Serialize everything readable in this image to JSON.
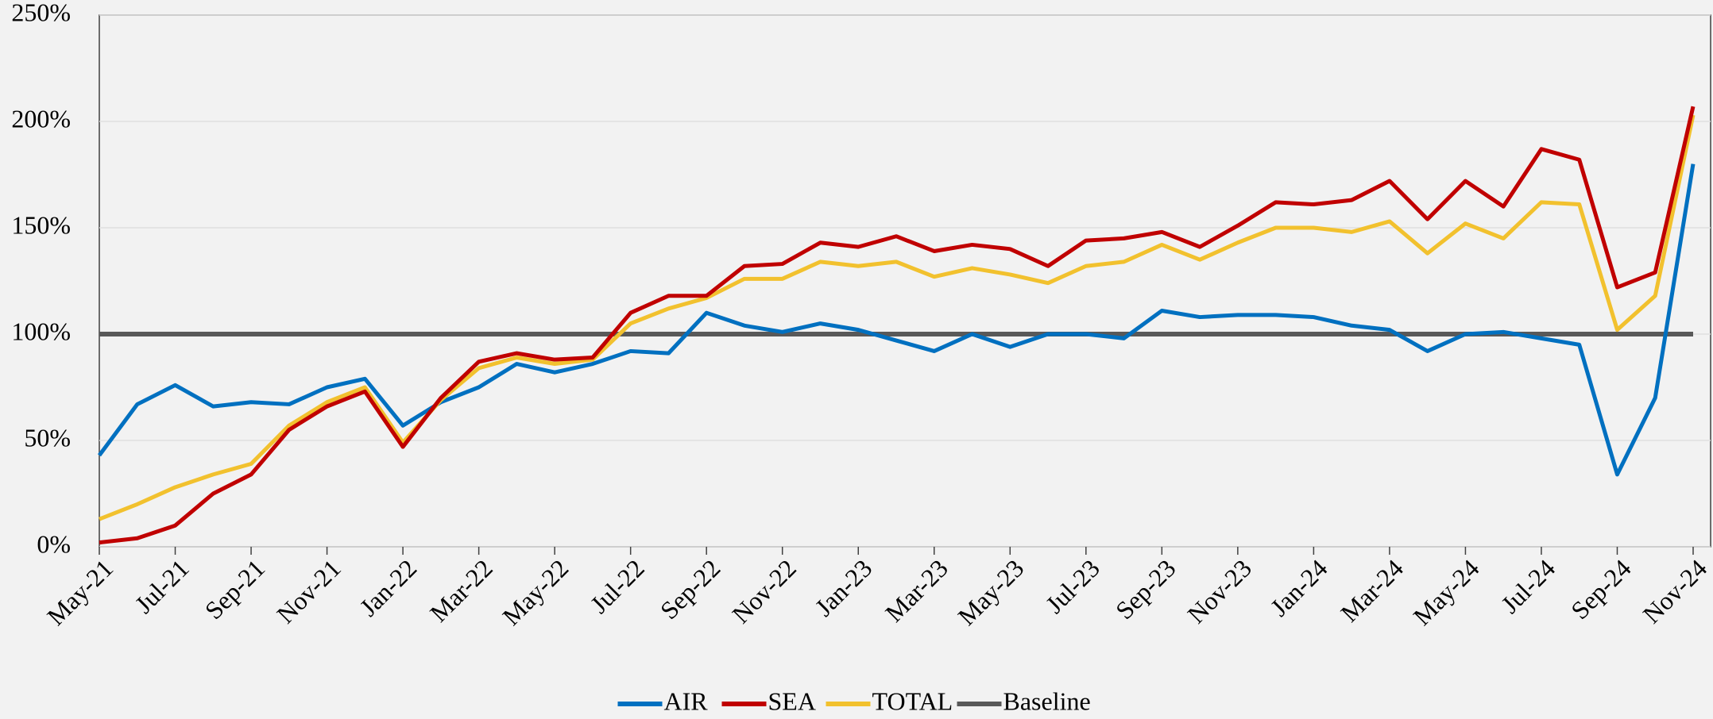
{
  "chart_data": {
    "type": "line",
    "categories": [
      "May-21",
      null,
      "Jul-21",
      null,
      "Sep-21",
      null,
      "Nov-21",
      null,
      "Jan-22",
      null,
      "Mar-22",
      null,
      "May-22",
      null,
      "Jul-22",
      null,
      "Sep-22",
      null,
      "Nov-22",
      null,
      "Jan-23",
      null,
      "Mar-23",
      null,
      "May-23",
      null,
      "Jul-23",
      null,
      "Sep-23",
      null,
      "Nov-23",
      null,
      "Jan-24",
      null,
      "Mar-24",
      null,
      "May-24",
      null,
      "Jul-24",
      null,
      "Sep-24",
      null,
      "Nov-24"
    ],
    "series": [
      {
        "name": "AIR",
        "color": "#0070c0",
        "values": [
          43,
          67,
          76,
          66,
          68,
          67,
          75,
          79,
          57,
          68,
          75,
          86,
          82,
          86,
          92,
          91,
          110,
          104,
          101,
          105,
          102,
          97,
          92,
          100,
          94,
          100,
          100,
          98,
          111,
          108,
          109,
          109,
          108,
          104,
          102,
          92,
          100,
          101,
          98,
          95,
          34,
          70,
          180
        ]
      },
      {
        "name": "SEA",
        "color": "#c00000",
        "values": [
          2,
          4,
          10,
          25,
          34,
          55,
          66,
          73,
          47,
          70,
          87,
          91,
          88,
          89,
          110,
          118,
          118,
          132,
          133,
          143,
          141,
          146,
          139,
          142,
          140,
          132,
          144,
          145,
          148,
          141,
          151,
          162,
          161,
          163,
          172,
          154,
          172,
          160,
          187,
          182,
          122,
          129,
          207
        ]
      },
      {
        "name": "TOTAL",
        "color": "#f2c12e",
        "values": [
          13,
          20,
          28,
          34,
          39,
          57,
          68,
          75,
          49,
          69,
          84,
          89,
          86,
          88,
          105,
          112,
          117,
          126,
          126,
          134,
          132,
          134,
          127,
          131,
          128,
          124,
          132,
          134,
          142,
          135,
          143,
          150,
          150,
          148,
          153,
          138,
          152,
          145,
          162,
          161,
          102,
          118,
          203
        ]
      },
      {
        "name": "Baseline",
        "color": "#595959",
        "values": [
          100,
          100,
          100,
          100,
          100,
          100,
          100,
          100,
          100,
          100,
          100,
          100,
          100,
          100,
          100,
          100,
          100,
          100,
          100,
          100,
          100,
          100,
          100,
          100,
          100,
          100,
          100,
          100,
          100,
          100,
          100,
          100,
          100,
          100,
          100,
          100,
          100,
          100,
          100,
          100,
          100,
          100,
          100
        ]
      }
    ],
    "ylim": [
      0,
      250
    ],
    "yticks": [
      {
        "value": 0,
        "label": "0%"
      },
      {
        "value": 50,
        "label": "50%"
      },
      {
        "value": 100,
        "label": "100%"
      },
      {
        "value": 150,
        "label": "150%"
      },
      {
        "value": 200,
        "label": "200%"
      },
      {
        "value": 250,
        "label": "250%"
      }
    ],
    "grid": true,
    "legend": "bottom"
  }
}
